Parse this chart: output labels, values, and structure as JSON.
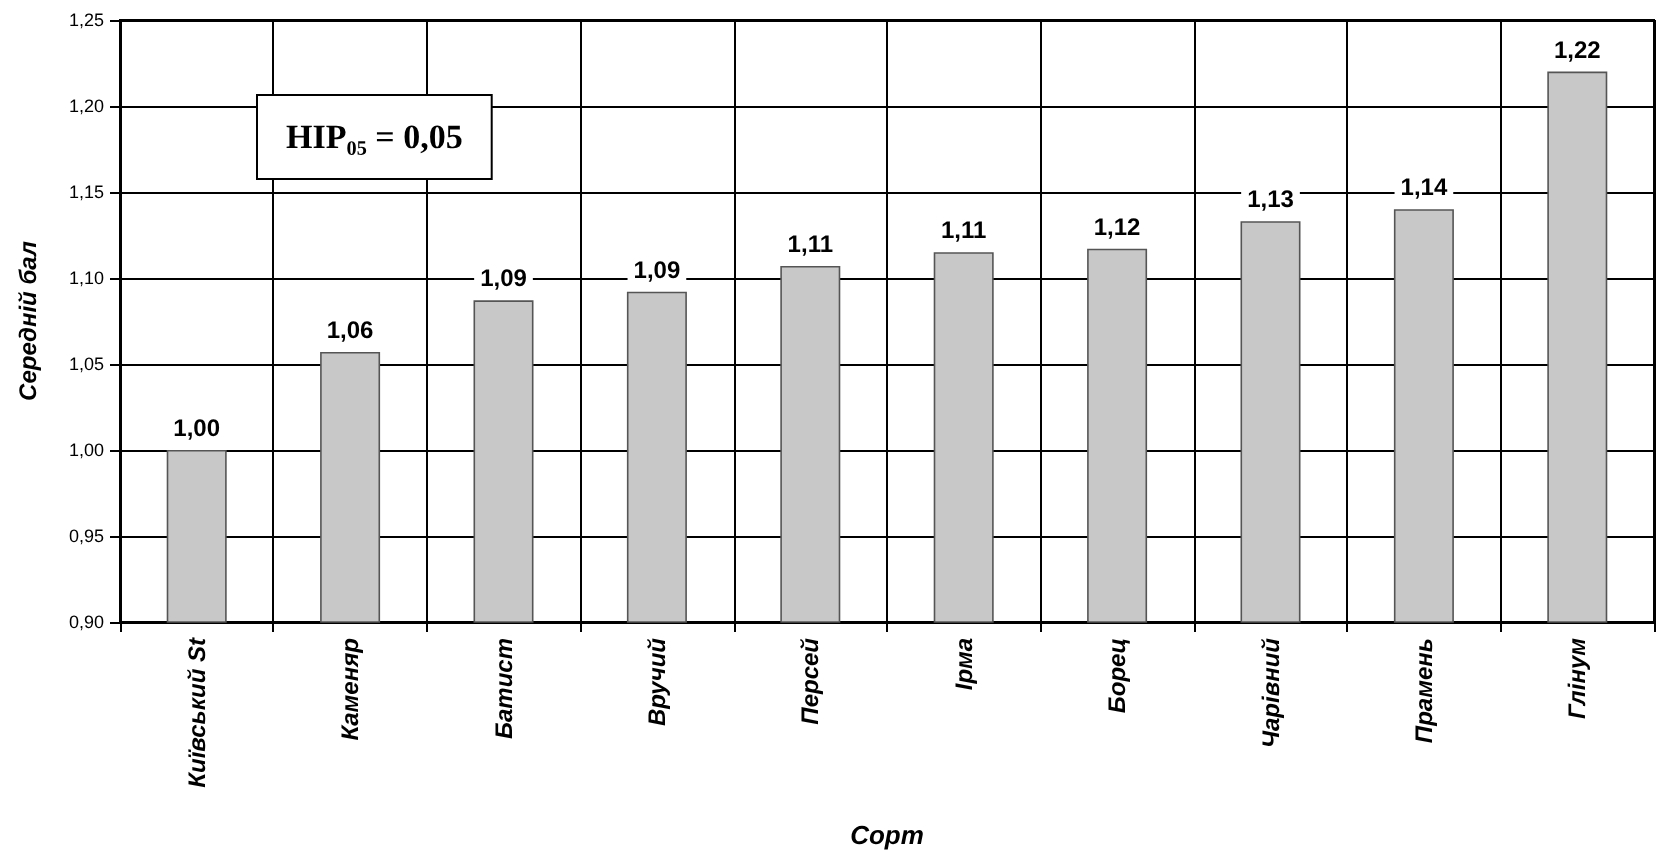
{
  "chart_data": {
    "type": "bar",
    "categories": [
      "Київський St",
      "Каменяр",
      "Батист",
      "Вручий",
      "Персей",
      "Ірма",
      "Борец",
      "Чарівний",
      "Прамень",
      "Глінум"
    ],
    "values": [
      1.0,
      1.057,
      1.087,
      1.092,
      1.107,
      1.115,
      1.117,
      1.133,
      1.14,
      1.22
    ],
    "value_labels": [
      "1,00",
      "1,06",
      "1,09",
      "1,09",
      "1,11",
      "1,11",
      "1,12",
      "1,13",
      "1,14",
      "1,22"
    ],
    "color": "#c8c8c8",
    "xlabel": "Сорт",
    "ylabel": "Середній бал",
    "annotations": [
      "НІР₀₅ = 0,05"
    ],
    "ylim": [
      0.9,
      1.25
    ],
    "yticks": [
      {
        "value": 0.9,
        "label": "0,90"
      },
      {
        "value": 0.95,
        "label": "0,95"
      },
      {
        "value": 1.0,
        "label": "1,00"
      },
      {
        "value": 1.05,
        "label": "1,05"
      },
      {
        "value": 1.1,
        "label": "1,10"
      },
      {
        "value": 1.15,
        "label": "1,15"
      },
      {
        "value": 1.2,
        "label": "1,20"
      },
      {
        "value": 1.25,
        "label": "1,25"
      }
    ],
    "grid": true
  }
}
